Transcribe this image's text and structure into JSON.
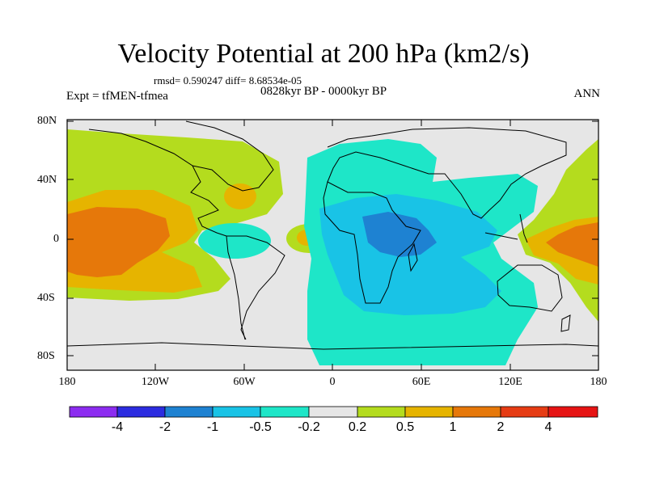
{
  "title": "Velocity Potential at 200 hPa (km2/s)",
  "stats": "rmsd= 0.590247 diff= 8.68534e-05",
  "experiment": "Expt = tfMEN-tfmea",
  "period": "0828kyr BP - 0000kyr BP",
  "season": "ANN",
  "lat_ticks": [
    "80N",
    "40N",
    "0",
    "40S",
    "80S"
  ],
  "lon_ticks": [
    "180",
    "120W",
    "60W",
    "0",
    "60E",
    "120E",
    "180"
  ],
  "colorbar": {
    "labels": [
      "-4",
      "-2",
      "-1",
      "-0.5",
      "-0.2",
      "0.2",
      "0.5",
      "1",
      "2",
      "4"
    ],
    "colors": [
      "#8c2cf0",
      "#2c2ce0",
      "#1e82d2",
      "#19c3e6",
      "#1ee6c8",
      "#e6e6e6",
      "#b4dc1e",
      "#e6b400",
      "#e6780a",
      "#e63c14",
      "#e61414"
    ]
  },
  "colors": {
    "ocean_background": "#e6e6e6",
    "level_0_2": "#b4dc1e",
    "level_0_5": "#e6b400",
    "level_1": "#e6780a",
    "level_neg_0_2": "#1ee6c8",
    "level_neg_0_5": "#19c3e6",
    "level_neg_1": "#1e82d2"
  }
}
